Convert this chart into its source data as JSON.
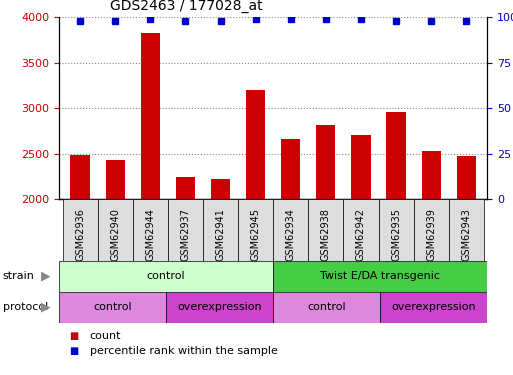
{
  "title": "GDS2463 / 177028_at",
  "samples": [
    "GSM62936",
    "GSM62940",
    "GSM62944",
    "GSM62937",
    "GSM62941",
    "GSM62945",
    "GSM62934",
    "GSM62938",
    "GSM62942",
    "GSM62935",
    "GSM62939",
    "GSM62943"
  ],
  "counts": [
    2490,
    2430,
    3830,
    2240,
    2220,
    3200,
    2660,
    2820,
    2700,
    2960,
    2530,
    2470
  ],
  "percentile_ranks": [
    98,
    98,
    99,
    98,
    98,
    99,
    99,
    99,
    99,
    98,
    98,
    98
  ],
  "bar_color": "#cc0000",
  "dot_color": "#0000cc",
  "ylim_left": [
    2000,
    4000
  ],
  "ylim_right": [
    0,
    100
  ],
  "yticks_left": [
    2000,
    2500,
    3000,
    3500,
    4000
  ],
  "yticks_right": [
    0,
    25,
    50,
    75,
    100
  ],
  "strain_labels": [
    {
      "text": "control",
      "start": 0,
      "end": 6,
      "color": "#ccffcc"
    },
    {
      "text": "Twist E/DA transgenic",
      "start": 6,
      "end": 12,
      "color": "#44cc44"
    }
  ],
  "protocol_labels": [
    {
      "text": "control",
      "start": 0,
      "end": 3,
      "color": "#dd88dd"
    },
    {
      "text": "overexpression",
      "start": 3,
      "end": 6,
      "color": "#cc44cc"
    },
    {
      "text": "control",
      "start": 6,
      "end": 9,
      "color": "#dd88dd"
    },
    {
      "text": "overexpression",
      "start": 9,
      "end": 12,
      "color": "#cc44cc"
    }
  ],
  "legend_items": [
    {
      "label": "count",
      "color": "#cc0000"
    },
    {
      "label": "percentile rank within the sample",
      "color": "#0000cc"
    }
  ],
  "background_color": "#ffffff",
  "grid_color": "#888888",
  "tick_label_color_left": "#cc0000",
  "tick_label_color_right": "#0000cc",
  "arrow_color": "#888888",
  "xtick_bg_color": "#dddddd",
  "figsize": [
    5.13,
    3.75
  ],
  "dpi": 100
}
